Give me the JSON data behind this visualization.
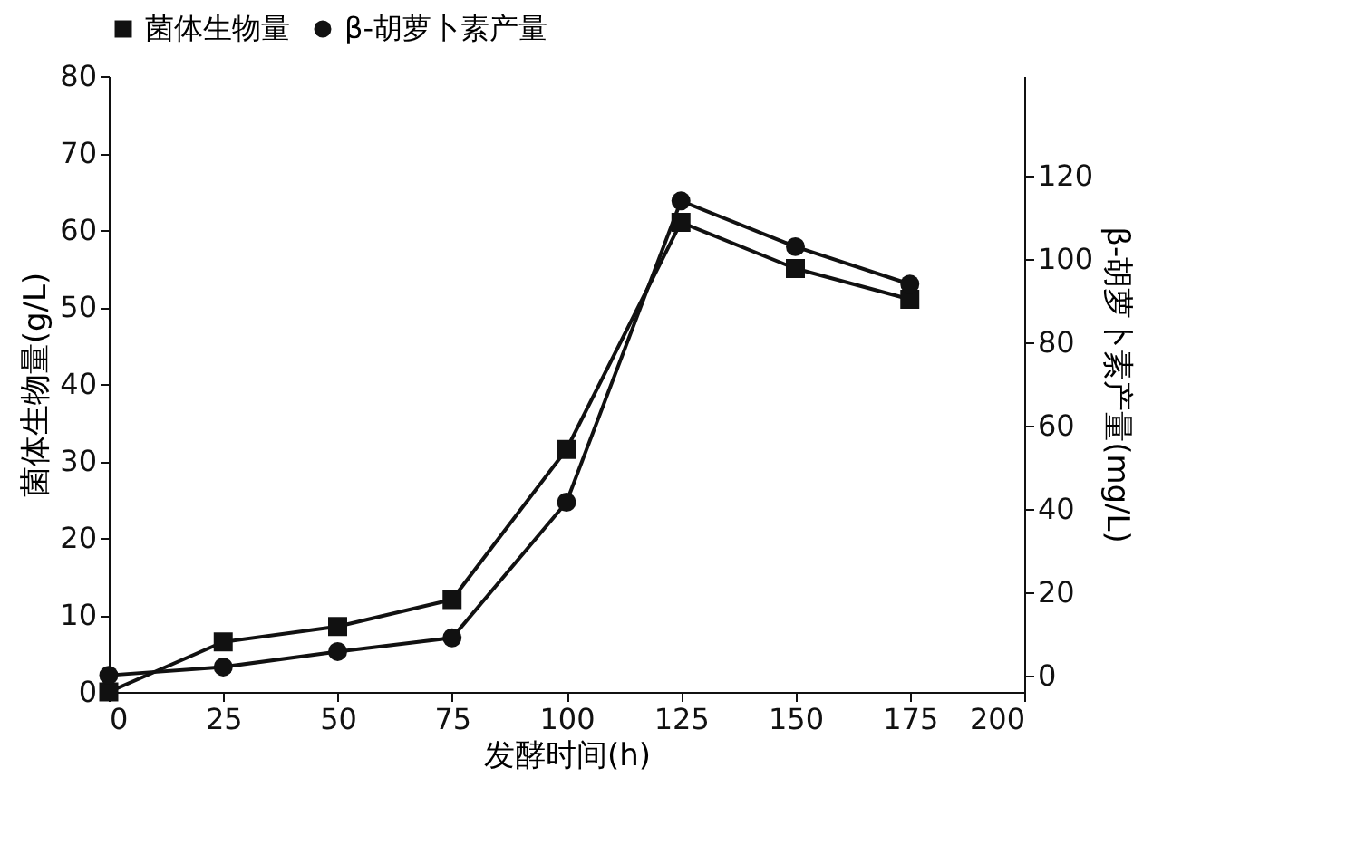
{
  "chart_data": {
    "type": "line",
    "xlabel": "发酵时间(h)",
    "ylabel": "菌体生物量(g/L)",
    "y2label": "β-胡萝卜素产量(mg/L)",
    "x": [
      0,
      25,
      50,
      75,
      100,
      125,
      150,
      175
    ],
    "xlim": [
      0,
      200
    ],
    "xticks": [
      0,
      25,
      50,
      75,
      100,
      125,
      150,
      175,
      200
    ],
    "ylim": [
      0,
      80
    ],
    "yticks": [
      0,
      10,
      20,
      30,
      40,
      50,
      60,
      70,
      80
    ],
    "y2lim": [
      -4,
      144
    ],
    "y2ticks": [
      0,
      20,
      40,
      60,
      80,
      100,
      120
    ],
    "grid": false,
    "legend": "top",
    "series": [
      {
        "name": "菌体生物量",
        "color": "#111111",
        "marker": "square",
        "values": [
          0,
          6.5,
          8.5,
          12,
          31.5,
          61,
          55,
          51
        ]
      },
      {
        "name": "β-胡萝卜素产量",
        "color": "#111111",
        "marker": "circle",
        "axis": "y2",
        "values": [
          0,
          2,
          5.7,
          9,
          41.6,
          114,
          103,
          94
        ]
      }
    ]
  }
}
